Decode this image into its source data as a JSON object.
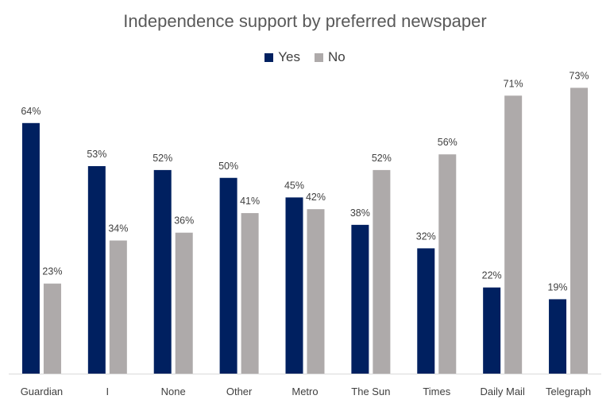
{
  "chart_data": {
    "type": "bar",
    "title": "Independence support by preferred newspaper",
    "categories": [
      "Guardian",
      "I",
      "None",
      "Other",
      "Metro",
      "The Sun",
      "Times",
      "Daily Mail",
      "Telegraph"
    ],
    "series": [
      {
        "name": "Yes",
        "color": "#002060",
        "values": [
          64,
          53,
          52,
          50,
          45,
          38,
          32,
          22,
          19
        ]
      },
      {
        "name": "No",
        "color": "#AEAAAA",
        "values": [
          23,
          34,
          36,
          41,
          42,
          52,
          56,
          71,
          73
        ]
      }
    ],
    "value_suffix": "%",
    "ylim": [
      0,
      80
    ],
    "grid": false,
    "legend_position": "top"
  }
}
